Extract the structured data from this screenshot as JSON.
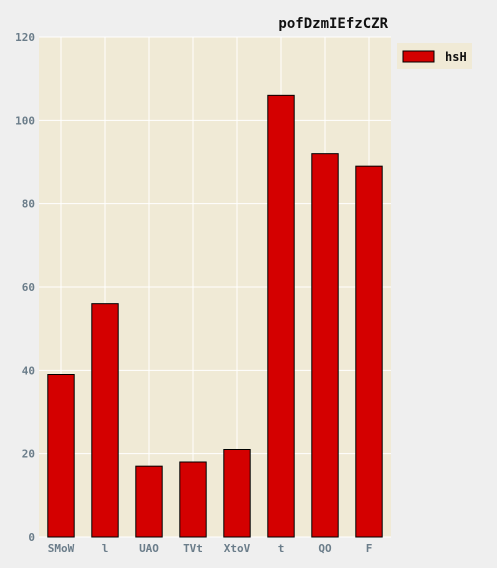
{
  "chart_data": {
    "type": "bar",
    "title": "pofDzmIEfzCZR",
    "xlabel": "",
    "ylabel": "",
    "categories": [
      "SMoW",
      "l",
      "UAO",
      "TVt",
      "XtoV",
      "t",
      "QO",
      "F"
    ],
    "series": [
      {
        "name": "hsH",
        "values": [
          39,
          56,
          17,
          18,
          21,
          106,
          92,
          89
        ]
      }
    ],
    "ylim": [
      0,
      120
    ],
    "yticks": [
      0,
      20,
      40,
      60,
      80,
      100,
      120
    ],
    "grid": true,
    "legend": "top-right",
    "colors": {
      "bar_fill": "#d40000",
      "bar_edge": "#000000",
      "plot_background": "#f0ead6",
      "figure_background": "#efefef",
      "grid": "#ffffff"
    }
  }
}
